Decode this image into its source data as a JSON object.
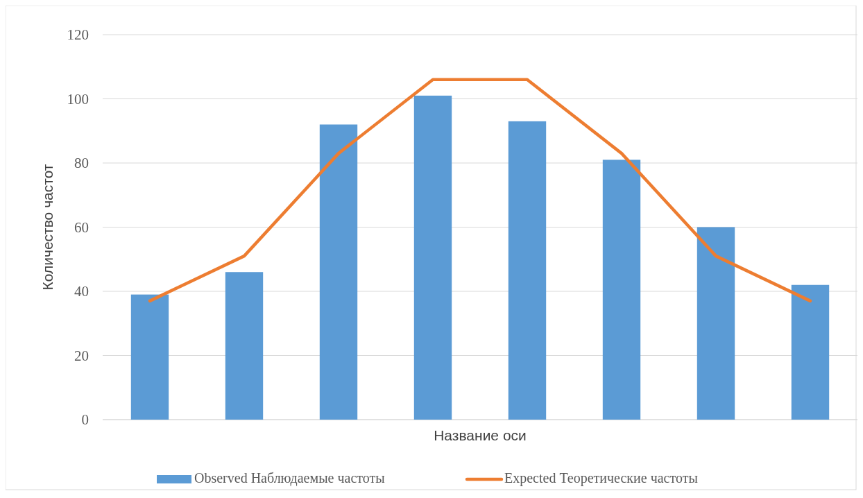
{
  "chart_data": {
    "type": "bar",
    "xlabel": "Название оси",
    "ylabel": "Количество частот",
    "categories": [
      null,
      null,
      null,
      null,
      null,
      null,
      null,
      null
    ],
    "series": [
      {
        "name": "Observed Наблюдаемые частоты",
        "color": "#5b9bd5",
        "values": [
          39,
          46,
          92,
          101,
          93,
          81,
          60,
          42
        ]
      },
      {
        "name": "Expected Теоретические частоты",
        "type": "line",
        "color": "#ed7d31",
        "values": [
          37,
          51,
          83,
          106,
          106,
          83,
          51,
          37
        ]
      }
    ],
    "ylim": [
      0,
      120
    ],
    "yticks": [
      0,
      20,
      40,
      60,
      80,
      100,
      120
    ],
    "grid": "y",
    "legend": "bottom",
    "marker": "none",
    "line_style": "solid"
  }
}
